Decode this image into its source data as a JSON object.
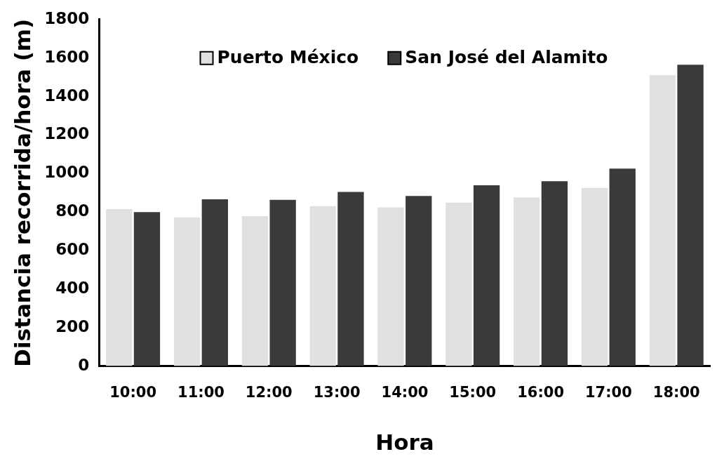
{
  "chart_data": {
    "type": "bar",
    "xlabel": "Hora",
    "ylabel": "Distancia recorrida/hora (m)",
    "categories": [
      "10:00",
      "11:00",
      "12:00",
      "13:00",
      "14:00",
      "15:00",
      "16:00",
      "17:00",
      "18:00"
    ],
    "series": [
      {
        "name": "Puerto México",
        "color": "#e0e0e0",
        "values": [
          815,
          772,
          779,
          831,
          824,
          849,
          876,
          925,
          1510
        ]
      },
      {
        "name": "San José del Alamito",
        "color": "#3a3a3a",
        "values": [
          800,
          866,
          863,
          904,
          883,
          939,
          960,
          1026,
          1565
        ]
      }
    ],
    "ylim": [
      0,
      1800
    ],
    "yticks": [
      0,
      200,
      400,
      600,
      800,
      1000,
      1200,
      1400,
      1600,
      1800
    ],
    "grid": false,
    "legend": "top"
  }
}
